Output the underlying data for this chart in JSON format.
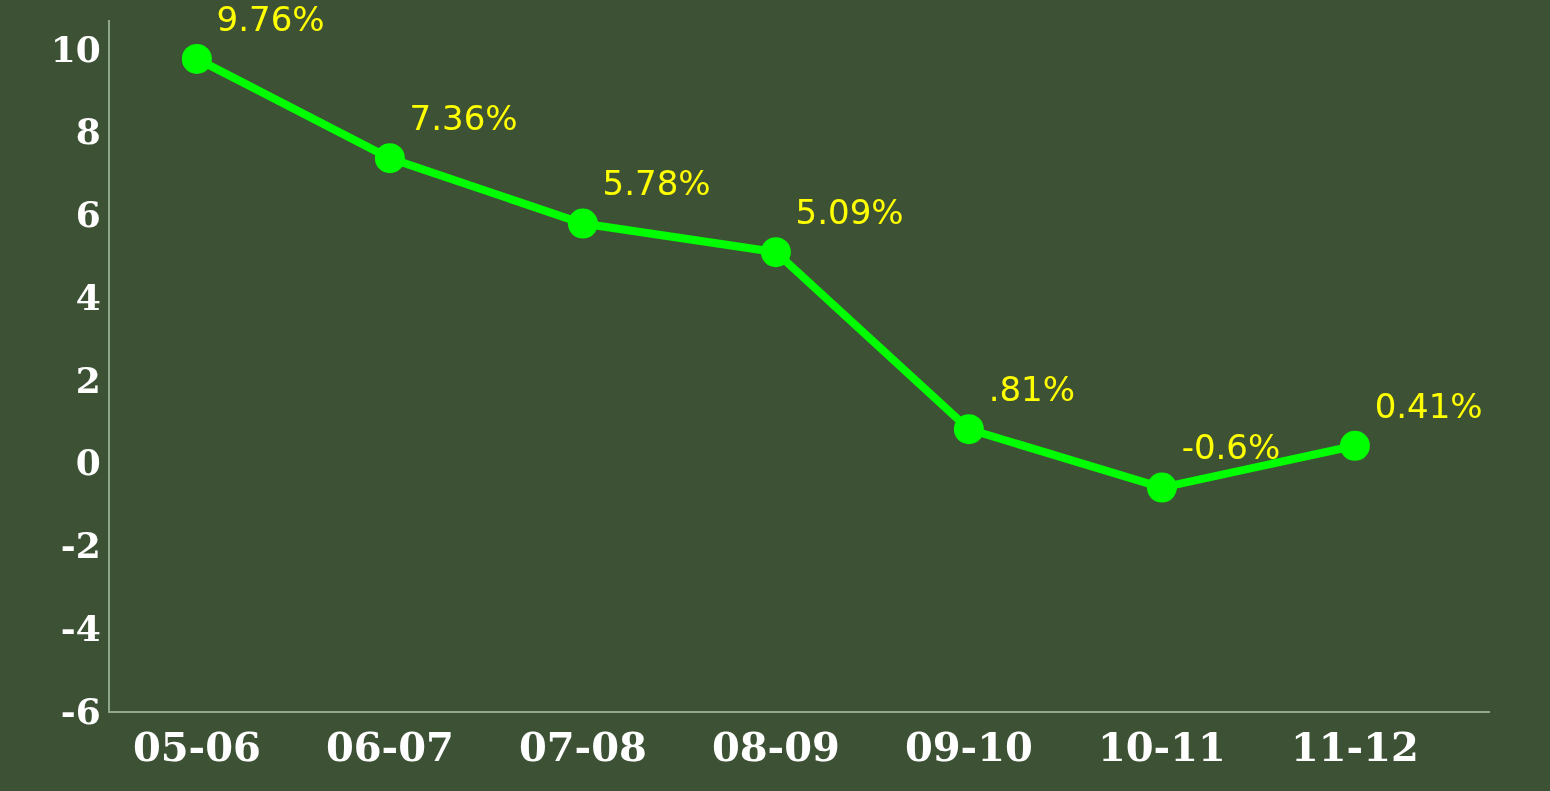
{
  "chart_data": {
    "type": "line",
    "categories": [
      "05-06",
      "06-07",
      "07-08",
      "08-09",
      "09-10",
      "10-11",
      "11-12"
    ],
    "series": [
      {
        "color": "#00ff00",
        "values": [
          9.76,
          7.36,
          5.78,
          5.09,
          0.81,
          -0.6,
          0.41
        ],
        "value_labels": [
          "9.76%",
          "7.36%",
          "5.78%",
          "5.09%",
          ".81%",
          "-0.6%",
          "0.41%"
        ]
      }
    ],
    "ylim": [
      -6,
      10.7
    ],
    "yticks": [
      -6,
      -4,
      -2,
      0,
      2,
      4,
      6,
      8,
      10
    ],
    "grid": false,
    "legend": false,
    "marker": "circle",
    "line_style": "solid"
  }
}
